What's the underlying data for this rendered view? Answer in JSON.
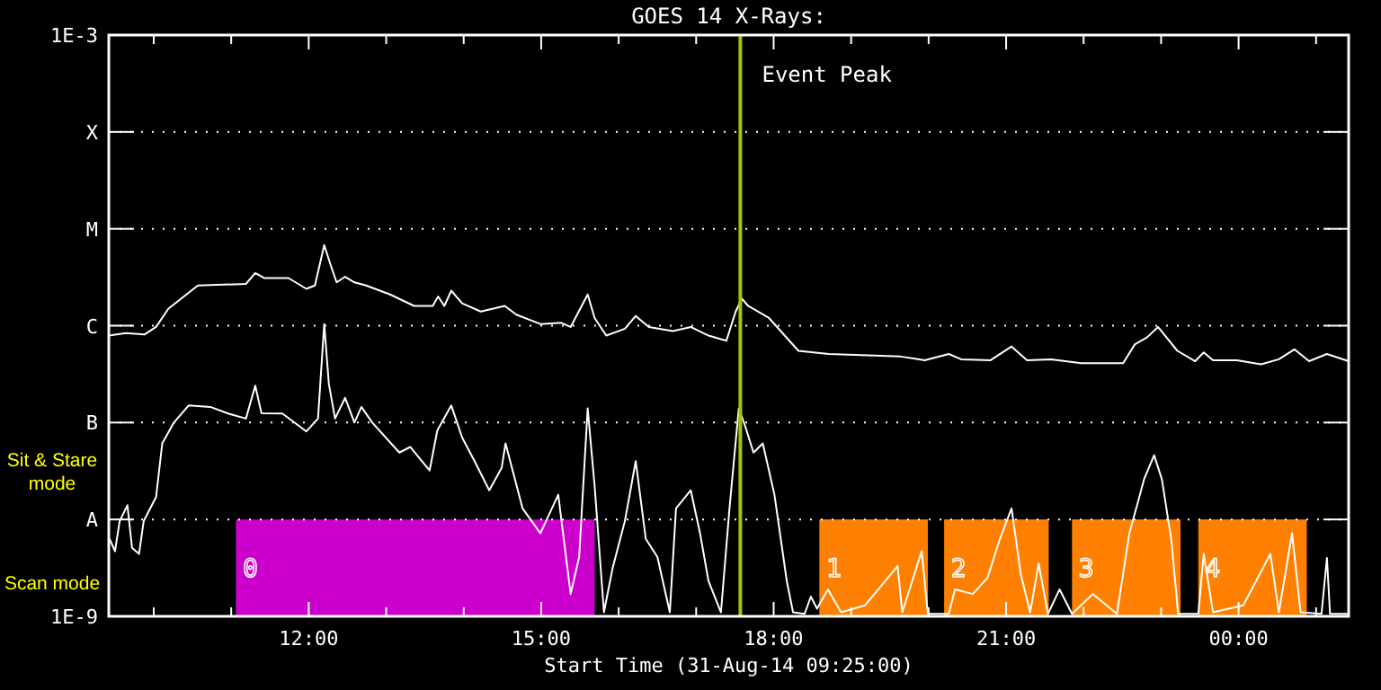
{
  "chart_data": {
    "type": "line",
    "title": "GOES 14 X-Rays:",
    "xlabel": "Start Time (31-Aug-14 09:25:00)",
    "log": true,
    "grid": "y",
    "line_style": "solid",
    "marker": "none",
    "xlim": [
      9.42,
      25.42
    ],
    "xticks": [
      {
        "value": 10,
        "label": null
      },
      {
        "value": 11,
        "label": null
      },
      {
        "value": 12,
        "label": "12:00"
      },
      {
        "value": 13,
        "label": null
      },
      {
        "value": 14,
        "label": null
      },
      {
        "value": 15,
        "label": "15:00"
      },
      {
        "value": 16,
        "label": null
      },
      {
        "value": 17,
        "label": null
      },
      {
        "value": 18,
        "label": "18:00"
      },
      {
        "value": 19,
        "label": null
      },
      {
        "value": 20,
        "label": null
      },
      {
        "value": 21,
        "label": "21:00"
      },
      {
        "value": 22,
        "label": null
      },
      {
        "value": 23,
        "label": null
      },
      {
        "value": 24,
        "label": "00:00"
      },
      {
        "value": 25,
        "label": null
      }
    ],
    "ylim": [
      1e-09,
      0.001
    ],
    "yticks": [
      {
        "value": 1e-09,
        "label": "1E-9"
      },
      {
        "value": 1e-08,
        "label": "A"
      },
      {
        "value": 1e-07,
        "label": "B"
      },
      {
        "value": 1e-06,
        "label": "C"
      },
      {
        "value": 1e-05,
        "label": "M"
      },
      {
        "value": 0.0001,
        "label": "X"
      },
      {
        "value": 0.001,
        "label": "1E-3"
      }
    ],
    "series": [
      {
        "color": "#ffffff",
        "x": [
          9.42,
          9.64,
          9.88,
          10.03,
          10.19,
          10.57,
          11.19,
          11.31,
          11.43,
          11.74,
          11.97,
          12.08,
          12.2,
          12.28,
          12.36,
          12.47,
          12.59,
          12.74,
          13.05,
          13.36,
          13.6,
          13.67,
          13.75,
          13.84,
          13.98,
          14.22,
          14.53,
          14.68,
          14.99,
          15.26,
          15.38,
          15.6,
          15.69,
          15.84,
          16.08,
          16.22,
          16.39,
          16.7,
          16.93,
          17.16,
          17.39,
          17.51,
          17.59,
          17.67,
          17.94,
          18.32,
          18.71,
          19.64,
          19.95,
          20.26,
          20.42,
          20.8,
          21.07,
          21.27,
          21.58,
          21.97,
          22.51,
          22.66,
          22.82,
          22.96,
          23.21,
          23.44,
          23.55,
          23.67,
          23.98,
          24.29,
          24.52,
          24.72,
          24.91,
          25.14,
          25.42
        ],
        "values": [
          7.9e-07,
          8.4e-07,
          8.1e-07,
          9.7e-07,
          1.5e-06,
          2.6e-06,
          2.7e-06,
          3.5e-06,
          3.1e-06,
          3.1e-06,
          2.4e-06,
          2.6e-06,
          6.8e-06,
          4.3e-06,
          2.8e-06,
          3.2e-06,
          2.8e-06,
          2.6e-06,
          2.1e-06,
          1.6e-06,
          1.6e-06,
          2e-06,
          1.6e-06,
          2.3e-06,
          1.7e-06,
          1.4e-06,
          1.6e-06,
          1.3e-06,
          1.04e-06,
          1.07e-06,
          9.7e-07,
          2.1e-06,
          1.2e-06,
          7.9e-07,
          9.3e-07,
          1.26e-06,
          9.7e-07,
          8.8e-07,
          9.7e-07,
          7.9e-07,
          7e-07,
          1.4e-06,
          1.9e-06,
          1.6e-06,
          1.2e-06,
          5.5e-07,
          5.1e-07,
          4.8e-07,
          4.4e-07,
          5.1e-07,
          4.5e-07,
          4.4e-07,
          6.1e-07,
          4.4e-07,
          4.5e-07,
          4.1e-07,
          4.1e-07,
          6.4e-07,
          7.6e-07,
          9.7e-07,
          5.5e-07,
          4.3e-07,
          5.3e-07,
          4.4e-07,
          4.4e-07,
          4e-07,
          4.5e-07,
          5.7e-07,
          4.3e-07,
          5.1e-07,
          4.3e-07
        ]
      },
      {
        "color": "#ffffff",
        "x": [
          9.43,
          9.5,
          9.56,
          9.66,
          9.72,
          9.81,
          9.87,
          10.03,
          10.11,
          10.26,
          10.45,
          10.73,
          10.96,
          11.19,
          11.31,
          11.39,
          11.66,
          11.97,
          12.12,
          12.2,
          12.26,
          12.34,
          12.47,
          12.59,
          12.68,
          12.82,
          13.17,
          13.31,
          13.56,
          13.66,
          13.84,
          13.98,
          14.14,
          14.33,
          14.49,
          14.54,
          14.76,
          14.99,
          15.22,
          15.38,
          15.49,
          15.6,
          15.69,
          15.81,
          15.92,
          16.08,
          16.22,
          16.35,
          16.5,
          16.66,
          16.74,
          16.93,
          17.05,
          17.16,
          17.32,
          17.43,
          17.55,
          17.63,
          17.74,
          17.86,
          18.01,
          18.17,
          18.25,
          18.4,
          18.48,
          18.56,
          18.7,
          18.87,
          19.18,
          19.6,
          19.66,
          19.91,
          19.99,
          20.26,
          20.34,
          20.57,
          20.76,
          20.92,
          21.07,
          21.19,
          21.31,
          21.42,
          21.54,
          21.69,
          21.85,
          22.12,
          22.43,
          22.59,
          22.7,
          22.78,
          22.91,
          23.01,
          23.13,
          23.22,
          23.48,
          23.55,
          23.67,
          24.06,
          24.41,
          24.52,
          24.69,
          24.8,
          25.07,
          25.14,
          25.18,
          25.42
        ],
        "values": [
          6.3e-09,
          4.7e-09,
          9.6e-09,
          1.4e-08,
          5.1e-09,
          4.4e-09,
          9.6e-09,
          1.7e-08,
          6.1e-08,
          1e-07,
          1.5e-07,
          1.45e-07,
          1.24e-07,
          1.1e-07,
          2.4e-07,
          1.25e-07,
          1.24e-07,
          8.1e-08,
          1.1e-07,
          1.04e-06,
          2.5e-07,
          1.1e-07,
          1.8e-07,
          1e-07,
          1.45e-07,
          1e-07,
          4.9e-08,
          5.6e-08,
          3.2e-08,
          8.3e-08,
          1.5e-07,
          7e-08,
          4e-08,
          2e-08,
          3.4e-08,
          6.1e-08,
          1.3e-08,
          7.2e-09,
          1.8e-08,
          1.7e-09,
          4.1e-09,
          1.4e-07,
          2.2e-08,
          1.1e-09,
          3.1e-09,
          9.6e-09,
          4e-08,
          6.3e-09,
          4.1e-09,
          1.1e-09,
          1.3e-08,
          2e-08,
          7.2e-09,
          2.3e-09,
          1.1e-09,
          1.3e-08,
          1.4e-07,
          9.3e-08,
          4.9e-08,
          6.1e-08,
          1.8e-08,
          2.3e-09,
          1.1e-09,
          1.06e-09,
          1.6e-09,
          1.2e-09,
          1.9e-09,
          1.1e-09,
          1.3e-09,
          3.3e-09,
          1.1e-09,
          4.7e-09,
          1.06e-09,
          1.06e-09,
          1.9e-09,
          1.7e-09,
          2.5e-09,
          6.3e-09,
          1.3e-08,
          2.7e-09,
          1.1e-09,
          3.5e-09,
          1.06e-09,
          1.9e-09,
          1.06e-09,
          1.7e-09,
          1.06e-09,
          7.2e-09,
          1.5e-08,
          2.6e-08,
          4.6e-08,
          2.6e-08,
          6.3e-09,
          1.06e-09,
          1.06e-09,
          4.4e-09,
          1.1e-09,
          1.3e-09,
          4.4e-09,
          1.1e-09,
          7.2e-09,
          1.1e-09,
          1.06e-09,
          4e-09,
          1.06e-09,
          1.06e-09
        ]
      }
    ],
    "ref_lines": [
      {
        "axis": "x",
        "value": 17.57,
        "label": "Event Peak",
        "color": "#a0c800"
      }
    ],
    "bands": [
      {
        "axis": "x",
        "from": 11.06,
        "to": 15.69,
        "label": "0",
        "color": "#cc00cc"
      },
      {
        "axis": "x",
        "from": 18.59,
        "to": 19.99,
        "label": "1",
        "color": "#ff8000"
      },
      {
        "axis": "x",
        "from": 20.2,
        "to": 21.55,
        "label": "2",
        "color": "#ff8000"
      },
      {
        "axis": "x",
        "from": 21.85,
        "to": 23.25,
        "label": "3",
        "color": "#ff8000"
      },
      {
        "axis": "x",
        "from": 23.48,
        "to": 24.88,
        "label": "4",
        "color": "#ff8000"
      }
    ],
    "annotations": [
      "Sit & Stare mode",
      "Scan mode"
    ]
  }
}
